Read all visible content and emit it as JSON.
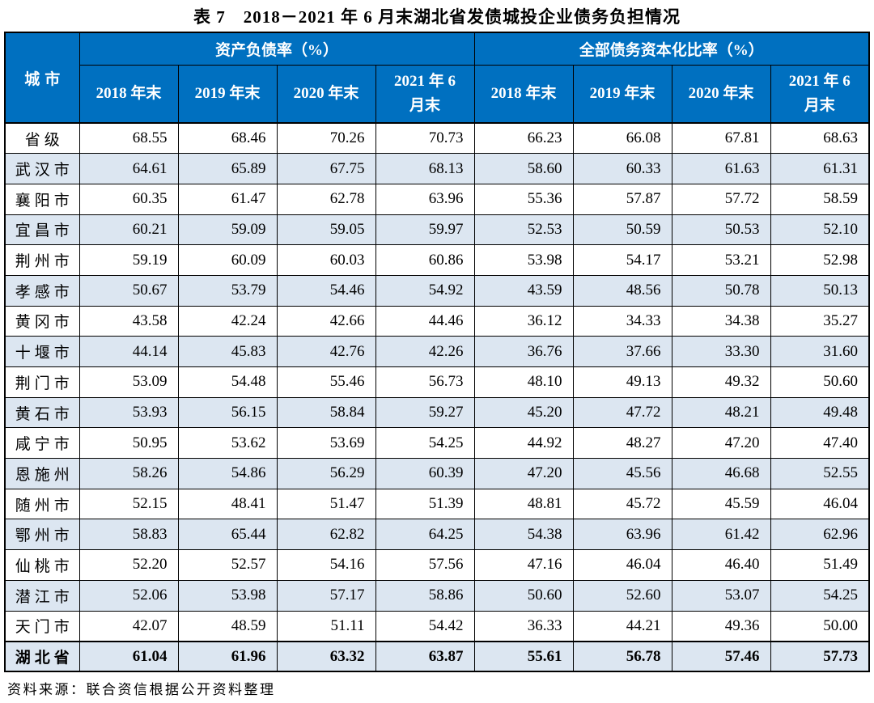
{
  "title": "表 7　2018－2021 年 6 月末湖北省发债城投企业债务负担情况",
  "source_note": "资料来源：联合资信根据公开资料整理",
  "colors": {
    "header_bg": "#0070C0",
    "header_text": "#FFFFFF",
    "alt_row_bg": "#DCE6F1",
    "border": "#000000"
  },
  "table": {
    "corner_header": "城市",
    "groups": [
      {
        "label": "资产负债率（%）"
      },
      {
        "label": "全部债务资本化比率（%）"
      }
    ],
    "period_headers": [
      "2018 年末",
      "2019 年末",
      "2020 年末",
      "2021 年 6\n月末"
    ],
    "rows": [
      {
        "city": "省级",
        "values": [
          "68.55",
          "68.46",
          "70.26",
          "70.73",
          "66.23",
          "66.08",
          "67.81",
          "68.63"
        ]
      },
      {
        "city": "武汉市",
        "values": [
          "64.61",
          "65.89",
          "67.75",
          "68.13",
          "58.60",
          "60.33",
          "61.63",
          "61.31"
        ]
      },
      {
        "city": "襄阳市",
        "values": [
          "60.35",
          "61.47",
          "62.78",
          "63.96",
          "55.36",
          "57.87",
          "57.72",
          "58.59"
        ]
      },
      {
        "city": "宜昌市",
        "values": [
          "60.21",
          "59.09",
          "59.05",
          "59.97",
          "52.53",
          "50.59",
          "50.53",
          "52.10"
        ]
      },
      {
        "city": "荆州市",
        "values": [
          "59.19",
          "60.09",
          "60.03",
          "60.86",
          "53.98",
          "54.17",
          "53.21",
          "52.98"
        ]
      },
      {
        "city": "孝感市",
        "values": [
          "50.67",
          "53.79",
          "54.46",
          "54.92",
          "43.59",
          "48.56",
          "50.78",
          "50.13"
        ]
      },
      {
        "city": "黄冈市",
        "values": [
          "43.58",
          "42.24",
          "42.66",
          "44.46",
          "36.12",
          "34.33",
          "34.38",
          "35.27"
        ]
      },
      {
        "city": "十堰市",
        "values": [
          "44.14",
          "45.83",
          "42.76",
          "42.26",
          "36.76",
          "37.66",
          "33.30",
          "31.60"
        ]
      },
      {
        "city": "荆门市",
        "values": [
          "53.09",
          "54.48",
          "55.46",
          "56.73",
          "48.10",
          "49.13",
          "49.32",
          "50.60"
        ]
      },
      {
        "city": "黄石市",
        "values": [
          "53.93",
          "56.15",
          "58.84",
          "59.27",
          "45.20",
          "47.72",
          "48.21",
          "49.48"
        ]
      },
      {
        "city": "咸宁市",
        "values": [
          "50.95",
          "53.62",
          "53.69",
          "54.25",
          "44.92",
          "48.27",
          "47.20",
          "47.40"
        ]
      },
      {
        "city": "恩施州",
        "values": [
          "58.26",
          "54.86",
          "56.29",
          "60.39",
          "47.20",
          "45.56",
          "46.68",
          "52.55"
        ]
      },
      {
        "city": "随州市",
        "values": [
          "52.15",
          "48.41",
          "51.47",
          "51.39",
          "48.81",
          "45.72",
          "45.59",
          "46.04"
        ]
      },
      {
        "city": "鄂州市",
        "values": [
          "58.83",
          "65.44",
          "62.82",
          "64.25",
          "54.38",
          "63.96",
          "61.42",
          "62.96"
        ]
      },
      {
        "city": "仙桃市",
        "values": [
          "52.20",
          "52.57",
          "54.16",
          "57.56",
          "47.16",
          "46.04",
          "46.40",
          "51.49"
        ]
      },
      {
        "city": "潜江市",
        "values": [
          "52.06",
          "53.98",
          "57.17",
          "58.86",
          "50.60",
          "52.60",
          "53.07",
          "54.25"
        ]
      },
      {
        "city": "天门市",
        "values": [
          "42.07",
          "48.59",
          "51.11",
          "54.42",
          "36.33",
          "44.21",
          "49.36",
          "50.00"
        ]
      },
      {
        "city": "湖北省",
        "values": [
          "61.04",
          "61.96",
          "63.32",
          "63.87",
          "55.61",
          "56.78",
          "57.46",
          "57.73"
        ]
      }
    ]
  }
}
